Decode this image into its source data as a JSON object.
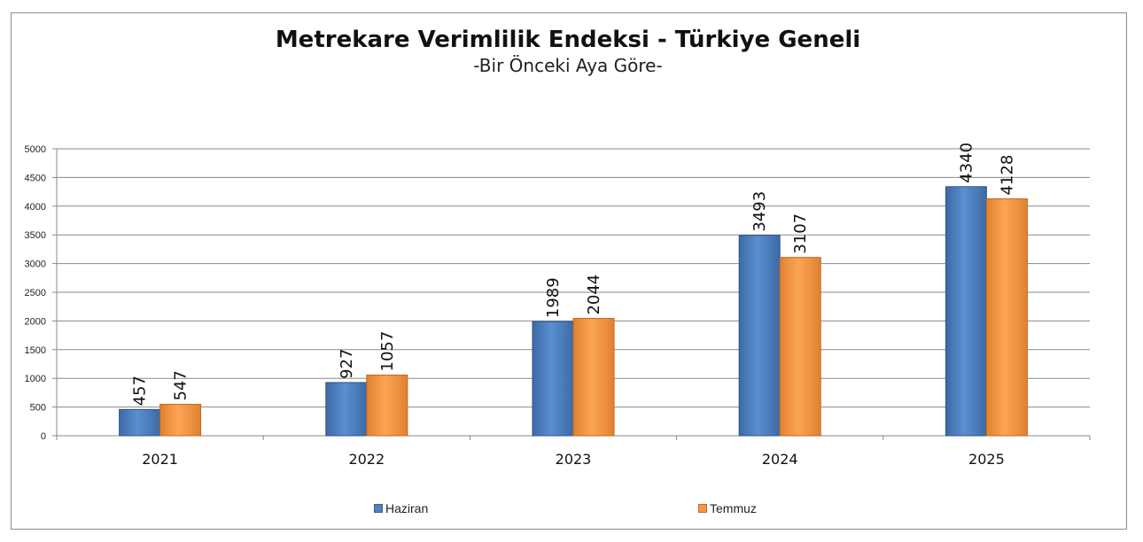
{
  "chart_data": {
    "type": "bar",
    "title": "Metrekare Verimlilik Endeksi - Türkiye Geneli",
    "subtitle": "-Bir Önceki Aya Göre-",
    "categories": [
      "2021",
      "2022",
      "2023",
      "2024",
      "2025"
    ],
    "series": [
      {
        "name": "Haziran",
        "values": [
          457,
          927,
          1989,
          3493,
          4340
        ],
        "color": "#4f81bd"
      },
      {
        "name": "Temmuz",
        "values": [
          547,
          1057,
          2044,
          3107,
          4128
        ],
        "color": "#f79646"
      }
    ],
    "yticks": [
      "0",
      "500",
      "1000",
      "1500",
      "2000",
      "2500",
      "3000",
      "3500",
      "4000",
      "4500",
      "5000"
    ],
    "ylim": [
      0,
      5000
    ],
    "grid": true,
    "legend_position": "bottom",
    "data_labels": true
  }
}
